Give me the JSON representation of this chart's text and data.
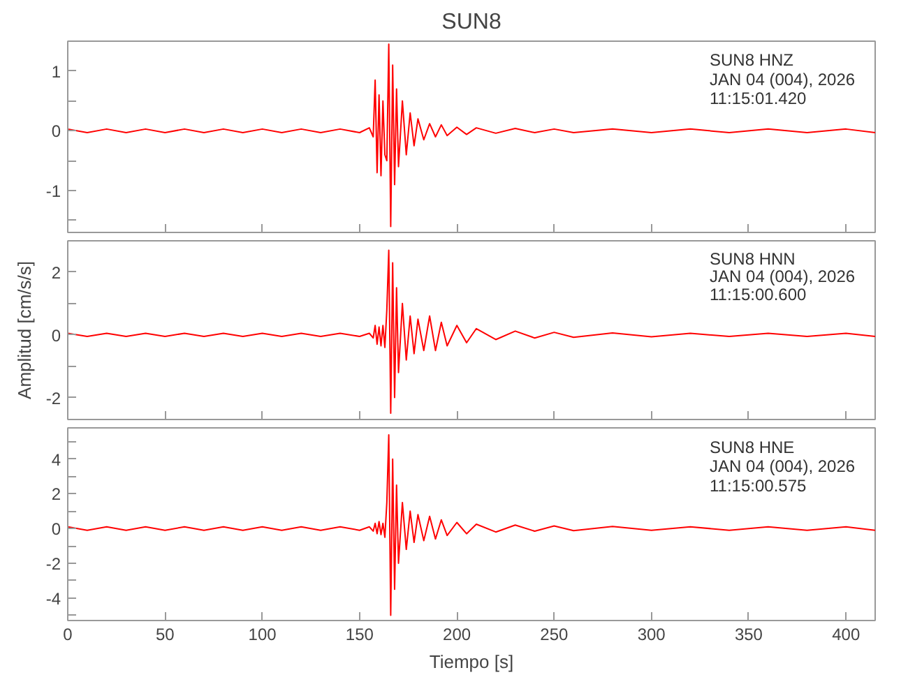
{
  "chart_data": [
    {
      "type": "line",
      "title": "SUN8",
      "annotations": [
        "SUN8   HNZ",
        "JAN 04 (004), 2026",
        "11:15:01.420"
      ],
      "grid": false,
      "tick_labels": "y",
      "xlim": [
        0,
        415
      ],
      "xticks": [
        0,
        50,
        100,
        150,
        200,
        250,
        300,
        350,
        400
      ],
      "ylim": [
        -1.7,
        1.5
      ],
      "yticks": [
        {
          "value": -1.5,
          "label": null
        },
        -1,
        {
          "value": -0.5,
          "label": null
        },
        0,
        {
          "value": 0.5,
          "label": null
        },
        1
      ],
      "x": [
        0,
        10,
        20,
        30,
        40,
        50,
        60,
        70,
        80,
        90,
        100,
        110,
        120,
        130,
        140,
        150,
        155,
        157,
        158,
        159,
        160,
        161,
        162,
        163,
        164,
        165,
        166,
        167,
        168,
        169,
        170,
        172,
        174,
        176,
        178,
        180,
        183,
        186,
        189,
        192,
        195,
        200,
        205,
        210,
        220,
        230,
        240,
        250,
        260,
        280,
        300,
        320,
        340,
        360,
        380,
        400,
        415
      ],
      "series": [
        {
          "color": "#ff0000",
          "values": [
            0.03,
            -0.03,
            0.03,
            -0.03,
            0.03,
            -0.03,
            0.03,
            -0.03,
            0.03,
            -0.03,
            0.03,
            -0.03,
            0.03,
            -0.03,
            0.03,
            -0.03,
            0.05,
            -0.1,
            0.85,
            -0.7,
            0.6,
            -0.75,
            0.5,
            -0.4,
            -0.5,
            1.45,
            -1.6,
            1.1,
            -0.9,
            0.7,
            -0.6,
            0.5,
            -0.4,
            0.3,
            -0.25,
            0.2,
            -0.15,
            0.12,
            -0.1,
            0.1,
            -0.08,
            0.06,
            -0.06,
            0.05,
            -0.04,
            0.04,
            -0.03,
            0.03,
            -0.03,
            0.03,
            -0.03,
            0.03,
            -0.03,
            0.03,
            -0.03,
            0.03,
            -0.03
          ]
        }
      ]
    },
    {
      "type": "line",
      "ylabel": "Amplitud [cm/s/s]",
      "annotations": [
        "SUN8   HNN",
        "JAN 04 (004), 2026",
        "11:15:00.600"
      ],
      "grid": false,
      "tick_labels": "y",
      "xlim": [
        0,
        415
      ],
      "xticks": [
        0,
        50,
        100,
        150,
        200,
        250,
        300,
        350,
        400
      ],
      "ylim": [
        -2.7,
        3
      ],
      "yticks": [
        -2,
        {
          "value": -1,
          "label": null
        },
        0,
        {
          "value": 1,
          "label": null
        },
        2
      ],
      "x": [
        0,
        10,
        20,
        30,
        40,
        50,
        60,
        70,
        80,
        90,
        100,
        110,
        120,
        130,
        140,
        150,
        155,
        157,
        158,
        159,
        160,
        161,
        162,
        163,
        164,
        165,
        166,
        167,
        168,
        169,
        170,
        172,
        174,
        176,
        178,
        180,
        183,
        186,
        189,
        192,
        195,
        200,
        205,
        210,
        220,
        230,
        240,
        250,
        260,
        280,
        300,
        320,
        340,
        360,
        380,
        400,
        415
      ],
      "series": [
        {
          "color": "#ff0000",
          "values": [
            0.05,
            -0.05,
            0.05,
            -0.05,
            0.05,
            -0.05,
            0.05,
            -0.05,
            0.05,
            -0.05,
            0.05,
            -0.05,
            0.05,
            -0.05,
            0.05,
            -0.05,
            0.05,
            -0.1,
            0.3,
            -0.3,
            0.25,
            -0.35,
            0.3,
            -0.4,
            0.8,
            2.7,
            -2.5,
            2.3,
            -2.0,
            1.5,
            -1.2,
            1.0,
            -0.8,
            0.6,
            -0.6,
            0.5,
            -0.5,
            0.6,
            -0.5,
            0.4,
            -0.35,
            0.3,
            -0.25,
            0.2,
            -0.15,
            0.12,
            -0.1,
            0.08,
            -0.08,
            0.06,
            -0.06,
            0.05,
            -0.05,
            0.05,
            -0.05,
            0.05,
            -0.05
          ]
        }
      ]
    },
    {
      "type": "line",
      "xlabel": "Tiempo [s]",
      "annotations": [
        "SUN8   HNE",
        "JAN 04 (004), 2026",
        "11:15:00.575"
      ],
      "grid": false,
      "xlim": [
        0,
        415
      ],
      "xticks": [
        0,
        50,
        100,
        150,
        200,
        250,
        300,
        350,
        400
      ],
      "ylim": [
        -5.3,
        5.8
      ],
      "yticks": [
        {
          "value": -5,
          "label": null
        },
        -4,
        {
          "value": -3,
          "label": null
        },
        -2,
        {
          "value": -1,
          "label": null
        },
        0,
        {
          "value": 1,
          "label": null
        },
        2,
        {
          "value": 3,
          "label": null
        },
        4,
        {
          "value": 5,
          "label": null
        }
      ],
      "x": [
        0,
        10,
        20,
        30,
        40,
        50,
        60,
        70,
        80,
        90,
        100,
        110,
        120,
        130,
        140,
        150,
        155,
        157,
        158,
        159,
        160,
        161,
        162,
        163,
        164,
        165,
        166,
        167,
        168,
        169,
        170,
        172,
        174,
        176,
        178,
        180,
        183,
        186,
        189,
        192,
        195,
        200,
        205,
        210,
        220,
        230,
        240,
        250,
        260,
        280,
        300,
        320,
        340,
        360,
        380,
        400,
        415
      ],
      "series": [
        {
          "color": "#ff0000",
          "values": [
            0.1,
            -0.1,
            0.1,
            -0.1,
            0.1,
            -0.1,
            0.1,
            -0.1,
            0.1,
            -0.1,
            0.1,
            -0.1,
            0.1,
            -0.1,
            0.1,
            -0.1,
            0.1,
            -0.15,
            0.3,
            -0.3,
            0.4,
            -0.35,
            0.3,
            -0.5,
            1.5,
            5.4,
            -5.0,
            4.0,
            -3.5,
            2.5,
            -2.0,
            1.5,
            -1.2,
            1.0,
            -0.8,
            0.8,
            -0.7,
            0.7,
            -0.6,
            0.5,
            -0.4,
            0.35,
            -0.3,
            0.25,
            -0.2,
            0.2,
            -0.15,
            0.15,
            -0.12,
            0.12,
            -0.1,
            0.1,
            -0.1,
            0.1,
            -0.1,
            0.1,
            -0.1
          ]
        }
      ]
    }
  ]
}
